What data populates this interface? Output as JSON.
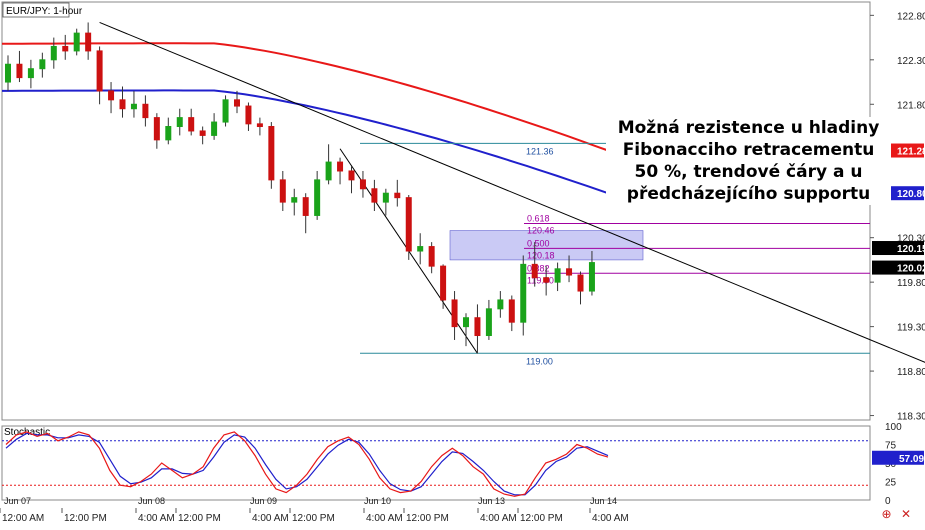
{
  "chart_data": {
    "type": "candlestick",
    "title": "EUR/JPY: 1-hour",
    "x_tick_labels": [
      "12:00 AM",
      "12:00 PM",
      "4:00 AM",
      "12:00 PM",
      "4:00 AM",
      "12:00 PM",
      "4:00 AM",
      "12:00 PM",
      "4:00 AM",
      "12:00 PM",
      "4:00 AM"
    ],
    "day_labels": [
      "Jun 07",
      "Jun 08",
      "Jun 09",
      "Jun 10",
      "Jun 13",
      "Jun 14"
    ],
    "y_axis": {
      "ticks": [
        122.8,
        122.3,
        121.8,
        120.3,
        119.8,
        119.3,
        118.8,
        118.3
      ],
      "ylim": [
        118.25,
        122.95
      ]
    },
    "price_tags": [
      {
        "value": "121.28",
        "color": "#e81818"
      },
      {
        "value": "120.80",
        "color": "#2020cc"
      },
      {
        "value": "120.15",
        "color": "#000000"
      },
      {
        "value": "120.02",
        "color": "#000000"
      }
    ],
    "candles": [
      [
        122.05,
        122.35,
        121.95,
        122.25
      ],
      [
        122.25,
        122.4,
        122.05,
        122.1
      ],
      [
        122.1,
        122.3,
        121.98,
        122.2
      ],
      [
        122.2,
        122.38,
        122.1,
        122.3
      ],
      [
        122.3,
        122.55,
        122.2,
        122.45
      ],
      [
        122.45,
        122.58,
        122.3,
        122.4
      ],
      [
        122.4,
        122.65,
        122.35,
        122.6
      ],
      [
        122.6,
        122.72,
        122.3,
        122.4
      ],
      [
        122.4,
        122.45,
        121.8,
        121.95
      ],
      [
        121.95,
        122.05,
        121.7,
        121.85
      ],
      [
        121.85,
        122.0,
        121.65,
        121.75
      ],
      [
        121.75,
        121.95,
        121.65,
        121.8
      ],
      [
        121.8,
        121.9,
        121.55,
        121.65
      ],
      [
        121.65,
        121.7,
        121.3,
        121.4
      ],
      [
        121.4,
        121.65,
        121.35,
        121.55
      ],
      [
        121.55,
        121.75,
        121.45,
        121.65
      ],
      [
        121.65,
        121.75,
        121.45,
        121.5
      ],
      [
        121.5,
        121.55,
        121.35,
        121.45
      ],
      [
        121.45,
        121.7,
        121.4,
        121.6
      ],
      [
        121.6,
        121.9,
        121.55,
        121.85
      ],
      [
        121.85,
        121.95,
        121.7,
        121.78
      ],
      [
        121.78,
        121.82,
        121.5,
        121.58
      ],
      [
        121.58,
        121.65,
        121.45,
        121.55
      ],
      [
        121.55,
        121.6,
        120.85,
        120.95
      ],
      [
        120.95,
        121.05,
        120.6,
        120.7
      ],
      [
        120.7,
        120.85,
        120.55,
        120.75
      ],
      [
        120.75,
        120.8,
        120.35,
        120.55
      ],
      [
        120.55,
        121.05,
        120.5,
        120.95
      ],
      [
        120.95,
        121.35,
        120.9,
        121.15
      ],
      [
        121.15,
        121.2,
        120.9,
        121.05
      ],
      [
        121.05,
        121.1,
        120.8,
        120.95
      ],
      [
        120.95,
        121.05,
        120.75,
        120.85
      ],
      [
        120.85,
        120.95,
        120.6,
        120.7
      ],
      [
        120.7,
        120.85,
        120.55,
        120.8
      ],
      [
        120.8,
        120.95,
        120.65,
        120.75
      ],
      [
        120.75,
        120.78,
        120.05,
        120.15
      ],
      [
        120.15,
        120.35,
        120.0,
        120.2
      ],
      [
        120.2,
        120.25,
        119.9,
        119.98
      ],
      [
        119.98,
        120.0,
        119.5,
        119.6
      ],
      [
        119.6,
        119.7,
        119.15,
        119.3
      ],
      [
        119.3,
        119.45,
        119.08,
        119.4
      ],
      [
        119.4,
        119.55,
        119.0,
        119.2
      ],
      [
        119.2,
        119.6,
        119.15,
        119.5
      ],
      [
        119.5,
        119.7,
        119.4,
        119.6
      ],
      [
        119.6,
        119.65,
        119.25,
        119.35
      ],
      [
        119.35,
        120.1,
        119.2,
        120.0
      ],
      [
        120.0,
        120.25,
        119.75,
        119.85
      ],
      [
        119.85,
        119.98,
        119.65,
        119.8
      ],
      [
        119.8,
        120.02,
        119.7,
        119.95
      ],
      [
        119.95,
        120.1,
        119.8,
        119.88
      ],
      [
        119.88,
        119.92,
        119.55,
        119.7
      ],
      [
        119.7,
        120.15,
        119.65,
        120.02
      ]
    ],
    "moving_averages": [
      {
        "color": "#e81818",
        "start": 122.48,
        "end": 121.28
      },
      {
        "color": "#2020cc",
        "start": 121.95,
        "end": 120.8
      }
    ],
    "trendlines": [
      {
        "color": "#000000",
        "from": {
          "candle": 8,
          "price": 122.72
        },
        "to": {
          "candle": 81,
          "price": 118.85
        }
      },
      {
        "color": "#000000",
        "from": {
          "candle": 29,
          "price": 121.3
        },
        "to": {
          "candle": 41,
          "price": 119.0
        }
      }
    ],
    "fibonacci": {
      "color": "#a000a0",
      "levels": [
        {
          "ratio": "0.618",
          "price": "120.46",
          "value": 120.46
        },
        {
          "ratio": "0.500",
          "price": "120.18",
          "value": 120.18
        },
        {
          "ratio": "0.382",
          "price": "119.90",
          "value": 119.9
        }
      ]
    },
    "horizontal_lines": [
      {
        "label": "121.36",
        "value": 121.36,
        "color": "#2a8a9a"
      },
      {
        "label": "119.00",
        "value": 119.0,
        "color": "#2a8a9a"
      }
    ],
    "resistance_zone": {
      "from": 120.05,
      "to": 120.38,
      "color": "#8a8ae8"
    },
    "stochastic": {
      "label": "Stochastic",
      "ticks": [
        "100",
        "75",
        "50",
        "25",
        "0"
      ],
      "levels": [
        80,
        20
      ],
      "current_value": "57.09",
      "k_color": "#e81818",
      "d_color": "#2020cc",
      "k": [
        75,
        88,
        92,
        86,
        90,
        80,
        85,
        92,
        88,
        70,
        40,
        20,
        18,
        25,
        35,
        50,
        40,
        30,
        35,
        45,
        70,
        88,
        92,
        80,
        60,
        35,
        15,
        10,
        20,
        35,
        55,
        72,
        80,
        85,
        75,
        55,
        30,
        15,
        10,
        12,
        25,
        45,
        60,
        70,
        60,
        45,
        35,
        15,
        8,
        5,
        8,
        30,
        50,
        55,
        62,
        75,
        70,
        62,
        58
      ],
      "d": [
        70,
        82,
        90,
        88,
        88,
        84,
        84,
        88,
        86,
        78,
        55,
        32,
        22,
        24,
        30,
        42,
        42,
        36,
        35,
        40,
        58,
        78,
        88,
        85,
        70,
        48,
        28,
        15,
        18,
        28,
        45,
        62,
        74,
        82,
        78,
        62,
        40,
        22,
        14,
        12,
        18,
        35,
        52,
        65,
        63,
        52,
        40,
        25,
        12,
        7,
        7,
        20,
        40,
        52,
        58,
        70,
        72,
        66,
        60
      ]
    },
    "annotation": {
      "lines": [
        "Možná rezistence u hladiny",
        "Fibonacciho retracementu",
        "50 %, trendové čáry a u",
        "předcházejícího supportu"
      ]
    },
    "legend_icons": [
      "crosshair-icon",
      "close-icon"
    ]
  }
}
